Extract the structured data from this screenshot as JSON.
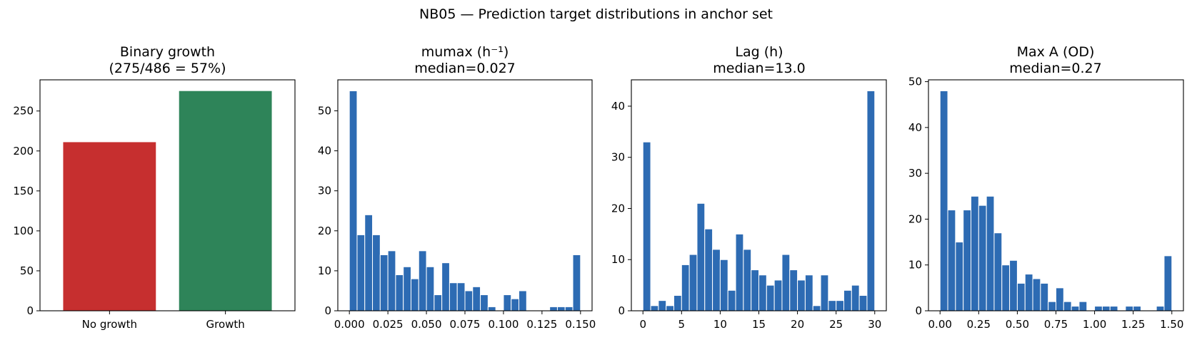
{
  "suptitle": "NB05 — Prediction target distributions in anchor set",
  "chart_data": [
    {
      "type": "bar",
      "title": "Binary growth",
      "subtitle": "(275/486 = 57%)",
      "categories": [
        "No growth",
        "Growth"
      ],
      "values": [
        211,
        275
      ],
      "colors": [
        "#c62f2f",
        "#2e8459"
      ],
      "ylim": [
        0,
        289
      ],
      "yticks": [
        0,
        50,
        100,
        150,
        200,
        250
      ],
      "grid": false
    },
    {
      "type": "bar",
      "title": "mumax (h⁻¹)",
      "subtitle": "median=0.027",
      "bin_range": [
        0.0,
        0.15
      ],
      "bins": 30,
      "counts": [
        55,
        19,
        24,
        19,
        14,
        15,
        9,
        11,
        8,
        15,
        11,
        4,
        12,
        7,
        7,
        5,
        6,
        4,
        1,
        0,
        4,
        3,
        5,
        0,
        0,
        0,
        1,
        1,
        1,
        14
      ],
      "xlim": [
        -0.0075,
        0.1575
      ],
      "ylim": [
        0,
        57.75
      ],
      "xticks": [
        0.0,
        0.025,
        0.05,
        0.075,
        0.1,
        0.125,
        0.15
      ],
      "xtick_labels": [
        "0.000",
        "0.025",
        "0.050",
        "0.075",
        "0.100",
        "0.125",
        "0.150"
      ],
      "yticks": [
        0,
        10,
        20,
        30,
        40,
        50
      ],
      "color": "#2d6bb3",
      "grid": false
    },
    {
      "type": "bar",
      "title": "Lag (h)",
      "subtitle": "median=13.0",
      "bin_range": [
        0,
        30
      ],
      "bins": 30,
      "counts": [
        33,
        1,
        2,
        1,
        3,
        9,
        11,
        21,
        16,
        12,
        10,
        4,
        15,
        12,
        8,
        7,
        5,
        6,
        11,
        8,
        6,
        7,
        1,
        7,
        2,
        2,
        4,
        5,
        3,
        43
      ],
      "xlim": [
        -1.5,
        31.5
      ],
      "ylim": [
        0,
        45.15
      ],
      "xticks": [
        0,
        5,
        10,
        15,
        20,
        25,
        30
      ],
      "xtick_labels": [
        "0",
        "5",
        "10",
        "15",
        "20",
        "25",
        "30"
      ],
      "yticks": [
        0,
        10,
        20,
        30,
        40
      ],
      "color": "#2d6bb3",
      "grid": false
    },
    {
      "type": "bar",
      "title": "Max A (OD)",
      "subtitle": "median=0.27",
      "bin_range": [
        0.0,
        1.5
      ],
      "bins": 30,
      "counts": [
        48,
        22,
        15,
        22,
        25,
        23,
        25,
        17,
        10,
        11,
        6,
        8,
        7,
        6,
        2,
        5,
        2,
        1,
        2,
        0,
        1,
        1,
        1,
        0,
        1,
        1,
        0,
        0,
        1,
        12
      ],
      "xlim": [
        -0.075,
        1.575
      ],
      "ylim": [
        0,
        50.4
      ],
      "xticks": [
        0.0,
        0.25,
        0.5,
        0.75,
        1.0,
        1.25,
        1.5
      ],
      "xtick_labels": [
        "0.00",
        "0.25",
        "0.50",
        "0.75",
        "1.00",
        "1.25",
        "1.50"
      ],
      "yticks": [
        0,
        10,
        20,
        30,
        40,
        50
      ],
      "color": "#2d6bb3",
      "grid": false
    }
  ]
}
